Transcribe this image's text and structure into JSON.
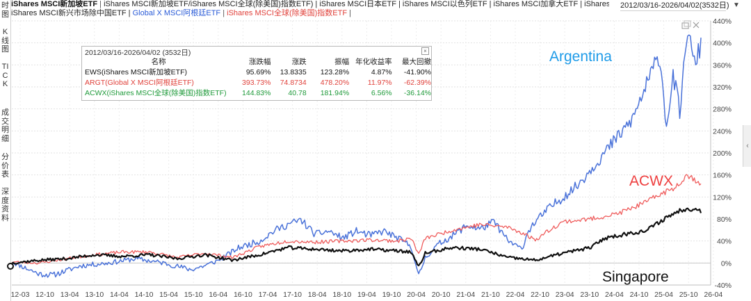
{
  "left_rail": [
    {
      "label": "时图",
      "top": 2
    },
    {
      "label": "K线图",
      "top": 40
    },
    {
      "label": "TICK",
      "top": 90
    },
    {
      "label": "成交明细",
      "top": 156
    },
    {
      "label": "分价表",
      "top": 220
    },
    {
      "label": "深度资料",
      "top": 270
    }
  ],
  "header": {
    "line1_main": "iShares MSCI新加坡ETF",
    "line1_rest": "iShares MSCI新加坡ETF/iShares MSCI全球(除美国)指数ETF) | iShares MSCI日本ETF | iShares MSCI以色列ETF | iShares MSCI加拿大ETF | iShares MSCI瑞士ETF |",
    "line2_a": "iShares MSCI新兴市场除中国ETF | ",
    "line2_b": "Global X MSCI阿根廷ETF",
    "line2_c": " | ",
    "line2_d": "iShares MSCI全球(除美国)指数ETF",
    "line2_e": " |"
  },
  "range_selector": {
    "value": "2012/03/16-2026/04/02(3532日)"
  },
  "infobox": {
    "title": "2012/03/16-2026/04/02 (3532日)",
    "close": "×",
    "columns": [
      "名称",
      "涨跌幅",
      "涨跌",
      "振幅",
      "年化收益率",
      "最大回撤"
    ],
    "rows": [
      {
        "name": "EWS(iShares MSCI新加坡ETF)",
        "cells": [
          "95.69%",
          "13.8335",
          "123.28%",
          "4.87%",
          "-41.90%"
        ],
        "color": "#111111"
      },
      {
        "name": "ARGT(Global X MSCI阿根廷ETF)",
        "cells": [
          "393.73%",
          "74.8734",
          "478.20%",
          "11.97%",
          "-62.39%"
        ],
        "color": "#e0403a"
      },
      {
        "name": "ACWX(iShares MSCI全球(除美国)指数ETF)",
        "cells": [
          "144.83%",
          "40.78",
          "181.94%",
          "6.56%",
          "-36.14%"
        ],
        "color": "#1f9a3a"
      }
    ]
  },
  "chart_data": {
    "type": "line",
    "y_ticks": [
      "-40%",
      "0%",
      "40%",
      "80%",
      "120%",
      "160%",
      "200%",
      "240%",
      "280%",
      "320%",
      "360%",
      "400%",
      "440%"
    ],
    "x_ticks": [
      "12-03",
      "12-10",
      "13-04",
      "13-10",
      "14-04",
      "14-10",
      "15-04",
      "15-10",
      "16-04",
      "16-10",
      "17-04",
      "17-10",
      "18-04",
      "18-10",
      "19-04",
      "19-10",
      "20-04",
      "20-10",
      "21-04",
      "21-10",
      "22-04",
      "22-10",
      "23-04",
      "23-10",
      "24-04",
      "24-10",
      "25-04",
      "25-10",
      "26-04"
    ],
    "ylim": [
      -40,
      440
    ],
    "annotations": [
      {
        "text": "Argentina",
        "color": "#1e9be8"
      },
      {
        "text": "ACWX",
        "color": "#ee3f3f"
      },
      {
        "text": "Singapore",
        "color": "#111111"
      }
    ],
    "series": [
      {
        "name": "ARGT(Global X MSCI阿根廷ETF)",
        "color": "#4a72d9",
        "width": 1.5,
        "x": [
          0,
          0.04,
          0.06,
          0.1,
          0.14,
          0.18,
          0.22,
          0.26,
          0.28,
          0.3,
          0.33,
          0.36,
          0.38,
          0.4,
          0.42,
          0.44,
          0.46,
          0.48,
          0.5,
          0.52,
          0.54,
          0.56,
          0.58,
          0.59,
          0.6,
          0.62,
          0.64,
          0.66,
          0.68,
          0.7,
          0.72,
          0.74,
          0.75,
          0.76,
          0.78,
          0.8,
          0.82,
          0.84,
          0.86,
          0.88,
          0.9,
          0.92,
          0.94,
          0.95,
          0.96,
          0.97,
          0.98,
          0.99,
          1.0
        ],
        "y": [
          2,
          -20,
          -22,
          -5,
          0,
          8,
          0,
          -12,
          -5,
          5,
          28,
          40,
          58,
          70,
          78,
          52,
          58,
          45,
          58,
          50,
          58,
          45,
          30,
          -25,
          10,
          35,
          50,
          68,
          62,
          75,
          40,
          25,
          60,
          75,
          100,
          120,
          140,
          170,
          200,
          230,
          260,
          320,
          380,
          250,
          340,
          270,
          430,
          360,
          395
        ]
      },
      {
        "name": "ACWX(iShares MSCI全球(除美国)指数ETF)",
        "color": "#ef5b5b",
        "width": 1.3,
        "x": [
          0,
          0.04,
          0.08,
          0.12,
          0.16,
          0.2,
          0.24,
          0.28,
          0.32,
          0.36,
          0.4,
          0.44,
          0.48,
          0.52,
          0.56,
          0.58,
          0.59,
          0.6,
          0.64,
          0.68,
          0.72,
          0.74,
          0.76,
          0.78,
          0.8,
          0.84,
          0.88,
          0.9,
          0.92,
          0.94,
          0.96,
          0.98,
          1.0
        ],
        "y": [
          2,
          0,
          8,
          15,
          20,
          20,
          10,
          18,
          10,
          30,
          40,
          38,
          40,
          42,
          40,
          45,
          15,
          45,
          60,
          70,
          65,
          55,
          42,
          60,
          75,
          80,
          90,
          100,
          110,
          125,
          135,
          160,
          145
        ]
      },
      {
        "name": "EWS(iShares MSCI新加坡ETF)",
        "color": "#111111",
        "width": 2.2,
        "x": [
          0,
          0.04,
          0.08,
          0.12,
          0.16,
          0.2,
          0.24,
          0.28,
          0.32,
          0.36,
          0.4,
          0.44,
          0.48,
          0.52,
          0.56,
          0.58,
          0.59,
          0.6,
          0.64,
          0.68,
          0.72,
          0.76,
          0.8,
          0.84,
          0.86,
          0.88,
          0.9,
          0.92,
          0.94,
          0.96,
          0.98,
          1.0
        ],
        "y": [
          0,
          5,
          8,
          15,
          12,
          15,
          8,
          15,
          5,
          15,
          28,
          25,
          22,
          25,
          22,
          20,
          -8,
          18,
          28,
          25,
          10,
          5,
          18,
          28,
          45,
          50,
          55,
          58,
          75,
          90,
          100,
          95
        ]
      }
    ]
  }
}
